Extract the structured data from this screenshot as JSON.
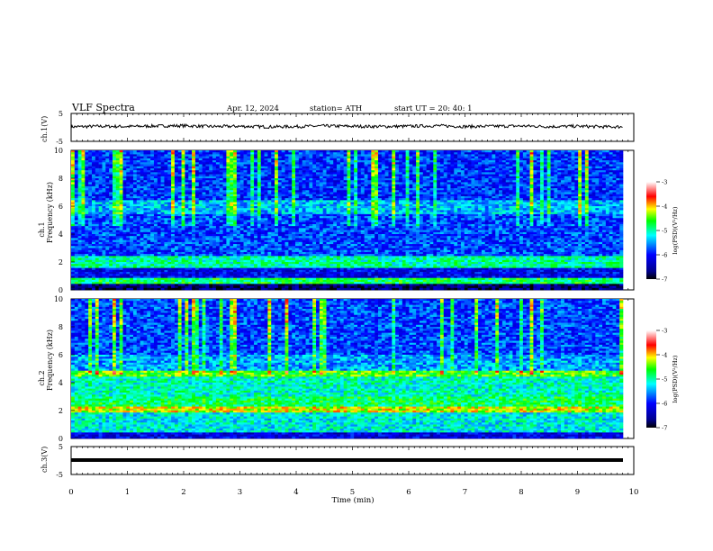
{
  "header": {
    "title": "VLF  Spectra",
    "date": "Apr. 12, 2024",
    "station": "station= ATH",
    "start": "start  UT  =    20: 40: 1"
  },
  "colors": {
    "black": "#000000",
    "dark_blue": "#00008b",
    "blue": "#0000ff",
    "cyan": "#00ffff",
    "green": "#00ff00",
    "yellow": "#ffff00",
    "red": "#ff0000",
    "pink": "#ffffff"
  },
  "chart_data": [
    {
      "type": "line",
      "panel": "ch.1 waveform",
      "ylabel": "ch.1(V)",
      "ylim": [
        -5,
        5
      ],
      "yticks": [
        "5",
        "-5"
      ],
      "xlim": [
        0,
        10
      ],
      "x": [
        0,
        0.5,
        1,
        1.5,
        2,
        2.5,
        3,
        3.5,
        4,
        4.5,
        5,
        5.5,
        6,
        6.5,
        7,
        7.5,
        8,
        8.5,
        9,
        9.5,
        9.8
      ],
      "y": [
        0.2,
        0.4,
        0.3,
        0.5,
        0.6,
        0.3,
        0.4,
        0.2,
        0.3,
        0.5,
        0.4,
        0.3,
        0.4,
        0.6,
        0.3,
        0.4,
        0.5,
        0.3,
        0.4,
        0.2,
        0.2
      ]
    },
    {
      "type": "heatmap",
      "panel": "ch.1 spectrogram",
      "panel_label": "ch.1",
      "ylabel": "Frequency  (kHz)",
      "ylim": [
        0,
        10
      ],
      "yticks": [
        "0",
        "2",
        "4",
        "6",
        "8",
        "10"
      ],
      "xlim": [
        0,
        10
      ],
      "colorbar": {
        "label": "log(PSD)(V²/Hz)",
        "ticks": [
          "-3",
          "-4",
          "-5",
          "-6",
          "-7"
        ],
        "range": [
          -7,
          -3
        ]
      }
    },
    {
      "type": "heatmap",
      "panel": "ch.2 spectrogram",
      "panel_label": "ch.2",
      "ylabel": "Frequency  (kHz)",
      "ylim": [
        0,
        10
      ],
      "yticks": [
        "0",
        "2",
        "4",
        "6",
        "8",
        "10"
      ],
      "xlim": [
        0,
        10
      ],
      "colorbar": {
        "label": "log(PSD)(V²/Hz)",
        "ticks": [
          "-3",
          "-4",
          "-5",
          "-6",
          "-7"
        ],
        "range": [
          -7,
          -3
        ]
      }
    },
    {
      "type": "line",
      "panel": "ch.3 waveform",
      "ylabel": "ch.3(V)",
      "ylim": [
        -5,
        5
      ],
      "yticks": [
        "5",
        "-5"
      ],
      "xlim": [
        0,
        10
      ],
      "x": [
        0,
        9.8
      ],
      "y": [
        0,
        0
      ]
    }
  ],
  "xaxis": {
    "label": "Time  (min)",
    "ticks": [
      "0",
      "1",
      "2",
      "3",
      "4",
      "5",
      "6",
      "7",
      "8",
      "9",
      "10"
    ]
  }
}
